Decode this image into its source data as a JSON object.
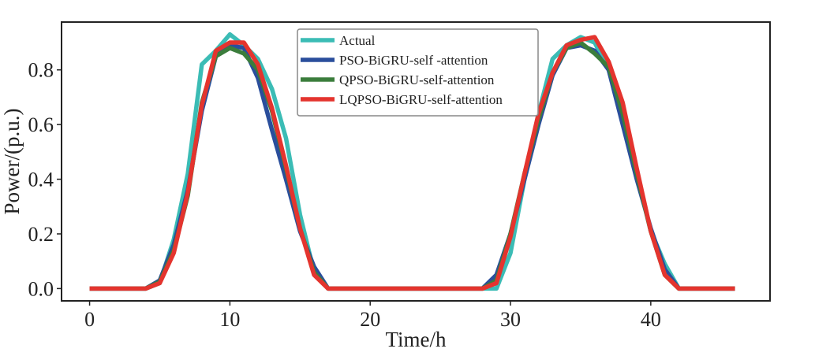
{
  "chart_data": {
    "type": "line",
    "title": "",
    "xlabel": "Time/h",
    "ylabel": "Power/(p.u.)",
    "xlim": [
      -2,
      48.5
    ],
    "ylim": [
      -0.045,
      0.975
    ],
    "xticks": [
      0,
      10,
      20,
      30,
      40
    ],
    "xtick_labels": [
      "0",
      "10",
      "20",
      "30",
      "40"
    ],
    "yticks": [
      0.0,
      0.2,
      0.4,
      0.6,
      0.8
    ],
    "ytick_labels": [
      "0.0",
      "0.2",
      "0.4",
      "0.6",
      "0.8"
    ],
    "legend_position": "top-center",
    "x": [
      0,
      1,
      2,
      3,
      4,
      5,
      6,
      7,
      8,
      9,
      10,
      11,
      12,
      13,
      14,
      15,
      16,
      17,
      18,
      19,
      20,
      21,
      22,
      23,
      24,
      25,
      26,
      27,
      28,
      29,
      30,
      31,
      32,
      33,
      34,
      35,
      36,
      37,
      38,
      39,
      40,
      41,
      42,
      43,
      44,
      45,
      46
    ],
    "series": [
      {
        "name": "Actual",
        "color": "#3bbcb5",
        "values": [
          0,
          0,
          0,
          0,
          0,
          0.02,
          0.18,
          0.42,
          0.82,
          0.87,
          0.93,
          0.89,
          0.84,
          0.73,
          0.55,
          0.27,
          0.06,
          0,
          0,
          0,
          0,
          0,
          0,
          0,
          0,
          0,
          0,
          0,
          0,
          0,
          0.13,
          0.4,
          0.64,
          0.84,
          0.89,
          0.92,
          0.9,
          0.8,
          0.63,
          0.42,
          0.21,
          0.09,
          0,
          0,
          0,
          0,
          0
        ]
      },
      {
        "name": "PSO-BiGRU-self -attention",
        "color": "#2a4e9c",
        "values": [
          0,
          0,
          0,
          0,
          0,
          0.03,
          0.16,
          0.36,
          0.65,
          0.85,
          0.89,
          0.88,
          0.77,
          0.58,
          0.4,
          0.21,
          0.08,
          0,
          0,
          0,
          0,
          0,
          0,
          0,
          0,
          0,
          0,
          0,
          0,
          0.05,
          0.2,
          0.4,
          0.6,
          0.78,
          0.88,
          0.89,
          0.87,
          0.8,
          0.6,
          0.4,
          0.22,
          0.07,
          0,
          0,
          0,
          0,
          0
        ]
      },
      {
        "name": "QPSO-BiGRU-self-attention",
        "color": "#3b7d3c",
        "values": [
          0,
          0,
          0,
          0,
          0,
          0.025,
          0.14,
          0.34,
          0.68,
          0.85,
          0.88,
          0.86,
          0.8,
          0.65,
          0.44,
          0.22,
          0.06,
          0,
          0,
          0,
          0,
          0,
          0,
          0,
          0,
          0,
          0,
          0,
          0,
          0.03,
          0.2,
          0.42,
          0.62,
          0.79,
          0.88,
          0.9,
          0.86,
          0.81,
          0.64,
          0.42,
          0.21,
          0.05,
          0,
          0,
          0,
          0,
          0
        ]
      },
      {
        "name": "LQPSO-BiGRU-self-attention",
        "color": "#e4342e",
        "values": [
          0,
          0,
          0,
          0,
          0,
          0.02,
          0.13,
          0.35,
          0.67,
          0.87,
          0.9,
          0.9,
          0.82,
          0.66,
          0.45,
          0.22,
          0.05,
          0,
          0,
          0,
          0,
          0,
          0,
          0,
          0,
          0,
          0,
          0,
          0,
          0.02,
          0.19,
          0.42,
          0.64,
          0.79,
          0.89,
          0.91,
          0.92,
          0.83,
          0.68,
          0.44,
          0.21,
          0.05,
          0,
          0,
          0,
          0,
          0
        ]
      }
    ]
  }
}
